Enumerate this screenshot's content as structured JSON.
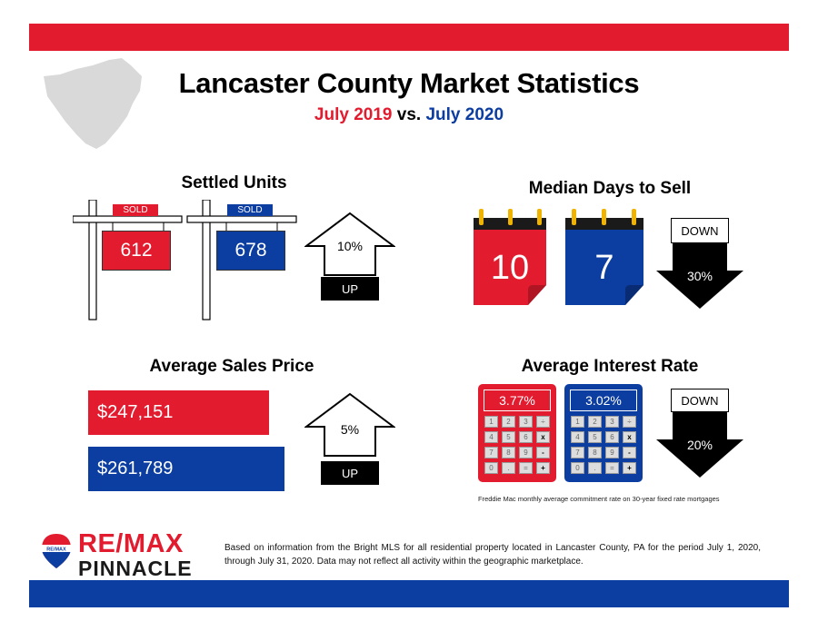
{
  "header": {
    "title": "Lancaster County Market Statistics",
    "subtitle_year1": "July 2019",
    "subtitle_vs": "vs.",
    "subtitle_year2": "July 2020"
  },
  "colors": {
    "red": "#e31b2f",
    "blue": "#0c3da0",
    "gray_map": "#d9d9d9"
  },
  "settled_units": {
    "title": "Settled Units",
    "tag_label": "SOLD",
    "value_2019": "612",
    "value_2020": "678",
    "change_pct": "10%",
    "direction": "UP"
  },
  "median_days": {
    "title": "Median Days to Sell",
    "value_2019": "10",
    "value_2020": "7",
    "change_pct": "30%",
    "direction": "DOWN"
  },
  "avg_price": {
    "title": "Average Sales Price",
    "value_2019": "$247,151",
    "value_2020": "$261,789",
    "change_pct": "5%",
    "direction": "UP"
  },
  "interest_rate": {
    "title": "Average Interest Rate",
    "value_2019": "3.77%",
    "value_2020": "3.02%",
    "change_pct": "20%",
    "direction": "DOWN",
    "keys": [
      "1",
      "2",
      "3",
      "÷",
      "4",
      "5",
      "6",
      "x",
      "7",
      "8",
      "9",
      "-",
      "0",
      ".",
      "=",
      "+"
    ],
    "footnote": "Freddie Mac monthly average commitment rate on 30-year fixed rate mortgages"
  },
  "footer": {
    "logo_remax": "RE/MAX",
    "logo_pinnacle": "PINNACLE",
    "logo_balloon_text": "RE/MAX",
    "disclaimer": "Based on information from the Bright MLS for all residential property located in Lancaster County, PA for the period July 1, 2020, through July 31, 2020.  Data may not reflect all activity within the geographic marketplace."
  }
}
